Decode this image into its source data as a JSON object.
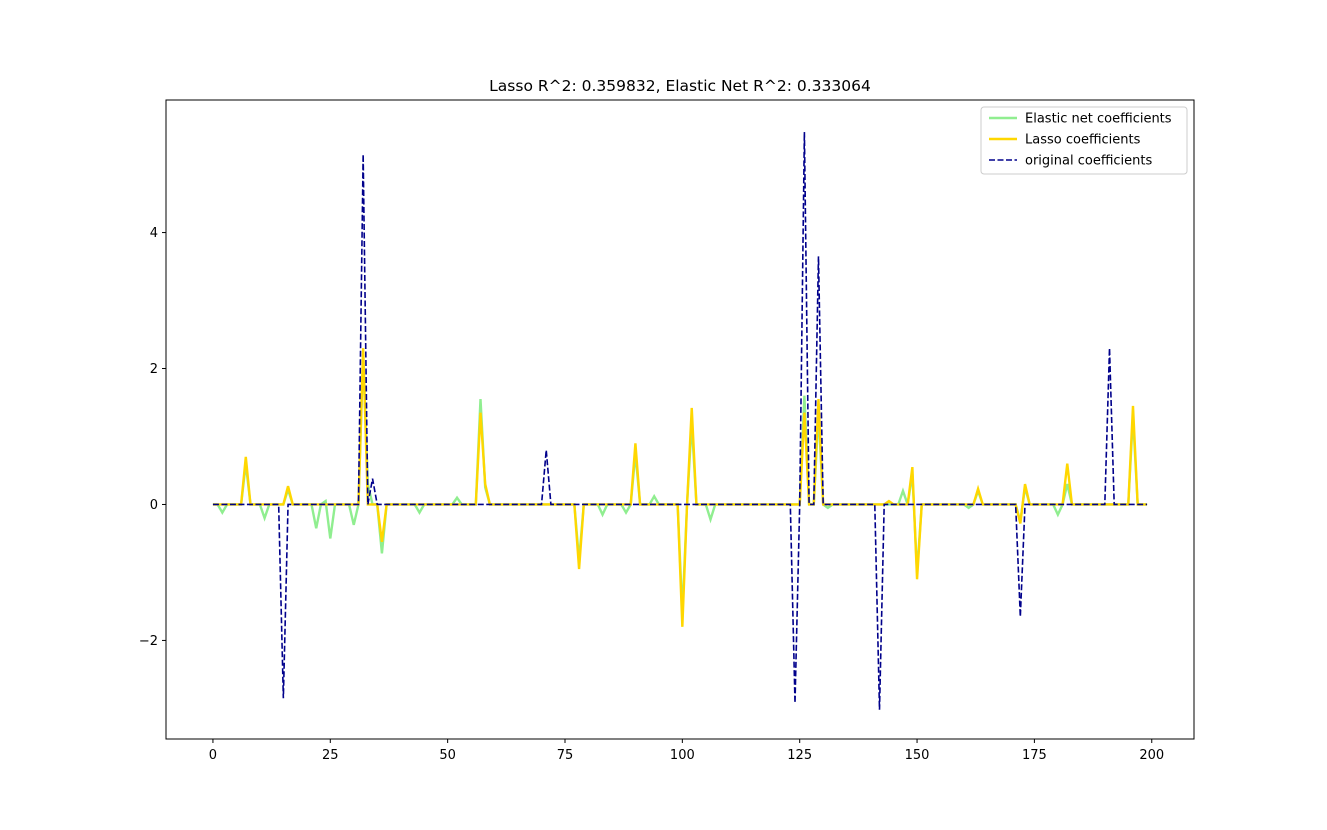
{
  "chart_data": {
    "type": "line",
    "title": "Lasso R^2: 0.359832, Elastic Net R^2: 0.333064",
    "xlabel": "",
    "ylabel": "",
    "xlim": [
      -10,
      209
    ],
    "ylim": [
      -3.45,
      5.95
    ],
    "x_ticks": [
      0,
      25,
      50,
      75,
      100,
      125,
      150,
      175,
      200
    ],
    "x_tick_labels": [
      "0",
      "25",
      "50",
      "75",
      "100",
      "125",
      "150",
      "175",
      "200"
    ],
    "y_ticks": [
      -2,
      0,
      2,
      4
    ],
    "y_tick_labels": [
      "−2",
      "0",
      "2",
      "4"
    ],
    "grid": false,
    "legend_position": "top-right",
    "n_points": 200,
    "series": [
      {
        "name": "Elastic net coefficients",
        "color": "#90ee90",
        "style": "solid",
        "sparse": {
          "2": -0.12,
          "7": 0.6,
          "11": -0.2,
          "16": 0.22,
          "22": -0.35,
          "24": 0.05,
          "25": -0.5,
          "30": -0.3,
          "32": 2.2,
          "33": 0.3,
          "36": -0.72,
          "44": -0.12,
          "52": 0.1,
          "57": 1.55,
          "58": 0.25,
          "78": -0.82,
          "83": -0.15,
          "88": -0.12,
          "90": 0.75,
          "94": 0.12,
          "100": -1.6,
          "102": 1.2,
          "106": -0.22,
          "126": 1.6,
          "129": 1.35,
          "131": -0.05,
          "147": 0.2,
          "149": 0.45,
          "150": -1.0,
          "161": -0.05,
          "163": 0.2,
          "172": -0.25,
          "173": 0.25,
          "180": -0.15,
          "182": 0.3,
          "196": 1.3
        }
      },
      {
        "name": "Lasso coefficients",
        "color": "#ffd700",
        "style": "solid",
        "sparse": {
          "7": 0.7,
          "16": 0.27,
          "32": 2.3,
          "36": -0.55,
          "57": 1.35,
          "58": 0.3,
          "78": -0.95,
          "90": 0.9,
          "100": -1.8,
          "102": 1.42,
          "126": 1.35,
          "129": 1.55,
          "144": 0.05,
          "149": 0.55,
          "150": -1.1,
          "163": 0.23,
          "172": -0.28,
          "173": 0.3,
          "182": 0.6,
          "196": 1.45
        }
      },
      {
        "name": "original coefficients",
        "color": "#00008b",
        "style": "dashed",
        "sparse": {
          "15": -2.85,
          "32": 5.15,
          "34": 0.38,
          "71": 0.8,
          "124": -2.92,
          "126": 5.48,
          "129": 3.65,
          "142": -3.02,
          "172": -1.65,
          "191": 2.3
        }
      }
    ]
  }
}
